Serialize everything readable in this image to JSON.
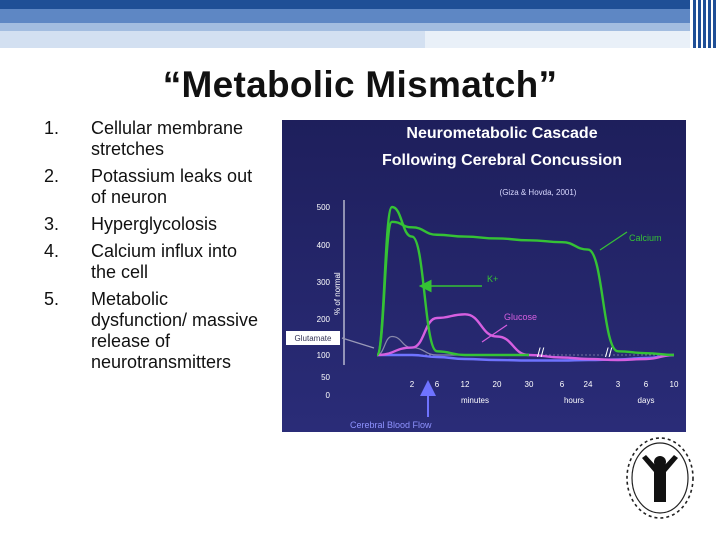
{
  "slide": {
    "title": "“Metabolic Mismatch”",
    "items": [
      {
        "num": "1.",
        "text": "Cellular membrane stretches"
      },
      {
        "num": "2.",
        "text": "Potassium leaks out of neuron"
      },
      {
        "num": "3.",
        "text": "Hyperglycolosis"
      },
      {
        "num": "4.",
        "text": "Calcium influx into the cell"
      },
      {
        "num": "5.",
        "text": "Metabolic dysfunction/ massive release of neurotransmitters"
      }
    ]
  },
  "chart_data": {
    "type": "line",
    "title": "Neurometabolic Cascade\nFollowing Cerebral Concussion",
    "subtitle": "(Giza & Hovda, 2001)",
    "ylabel": "% of normal",
    "yticks": [
      "500",
      "400",
      "300",
      "200",
      "100",
      "50",
      "0"
    ],
    "xticks": [
      "2",
      "6",
      "12",
      "20",
      "30",
      "6",
      "24",
      "3",
      "6",
      "10"
    ],
    "x_segments": [
      "minutes",
      "hours",
      "days"
    ],
    "x_label": "Cerebral Blood Flow",
    "series": [
      {
        "name": "Calcium",
        "color": "#35c235",
        "x": [
          "0",
          "1",
          "2",
          "6",
          "12",
          "20",
          "30",
          "6h",
          "24h",
          "3d",
          "6d",
          "10d"
        ],
        "values": [
          100,
          460,
          445,
          425,
          420,
          415,
          410,
          405,
          385,
          110,
          105,
          100
        ]
      },
      {
        "name": "K+",
        "color": "#35c235",
        "x": [
          "0",
          "1",
          "2",
          "6",
          "12",
          "20",
          "30"
        ],
        "values": [
          100,
          500,
          420,
          110,
          100,
          100,
          100
        ]
      },
      {
        "name": "Glucose",
        "color": "#d65fe0",
        "x": [
          "0",
          "2",
          "6",
          "12",
          "20",
          "30",
          "6h",
          "24h",
          "3d",
          "6d",
          "10d"
        ],
        "values": [
          100,
          120,
          200,
          210,
          150,
          100,
          75,
          60,
          50,
          60,
          100
        ]
      },
      {
        "name": "Glutamate",
        "color": "#8888aa",
        "x": [
          "0",
          "1",
          "2",
          "6",
          "12",
          "20"
        ],
        "values": [
          100,
          150,
          120,
          100,
          100,
          100
        ]
      },
      {
        "name": "Cerebral Blood Flow",
        "color": "#6f73ff",
        "x": [
          "0",
          "2",
          "6",
          "12",
          "20",
          "30",
          "6h",
          "24h",
          "3d",
          "6d",
          "10d"
        ],
        "values": [
          100,
          100,
          80,
          60,
          50,
          45,
          45,
          50,
          55,
          70,
          100
        ]
      }
    ]
  }
}
